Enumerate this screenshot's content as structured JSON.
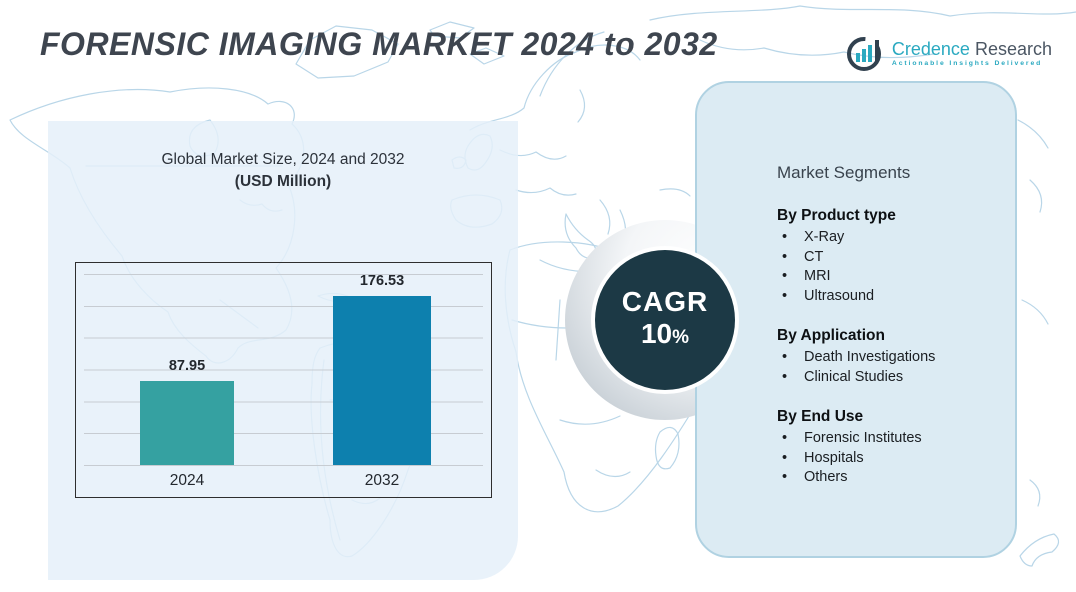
{
  "title": "FORENSIC IMAGING MARKET 2024 to 2032",
  "logo": {
    "name_primary": "Credence",
    "name_secondary": "Research",
    "tagline": "Actionable Insights Delivered",
    "accent_color": "#2aa9c0",
    "dark_color": "#31414f"
  },
  "chart_data": {
    "type": "bar",
    "title": "Global Market Size, 2024 and 2032",
    "subtitle": "(USD Million)",
    "categories": [
      "2024",
      "2032"
    ],
    "values": [
      87.95,
      176.53
    ],
    "bar_colors": [
      "#35a1a1",
      "#0d80ae"
    ],
    "xlabel": "",
    "ylabel": "",
    "ylim": [
      0,
      200
    ],
    "grid": true,
    "legend": false
  },
  "cagr": {
    "label": "CAGR",
    "value": "10",
    "percent_sign": "%",
    "circle_color": "#1c3945"
  },
  "segments": {
    "heading": "Market Segments",
    "groups": [
      {
        "title": "By Product type",
        "items": [
          "X-Ray",
          "CT",
          "MRI",
          "Ultrasound"
        ]
      },
      {
        "title": "By Application",
        "items": [
          "Death Investigations",
          "Clinical Studies"
        ]
      },
      {
        "title": "By End Use",
        "items": [
          "Forensic Institutes",
          "Hospitals",
          "Others"
        ]
      }
    ]
  },
  "colors": {
    "panel_left_bg": "#e5f0f9",
    "panel_right_bg": "#dcebf3",
    "panel_right_border": "#b0d2e2",
    "map_stroke": "#b9d6e8",
    "gridline": "#c7ccd2",
    "title_text": "#3e454f"
  }
}
